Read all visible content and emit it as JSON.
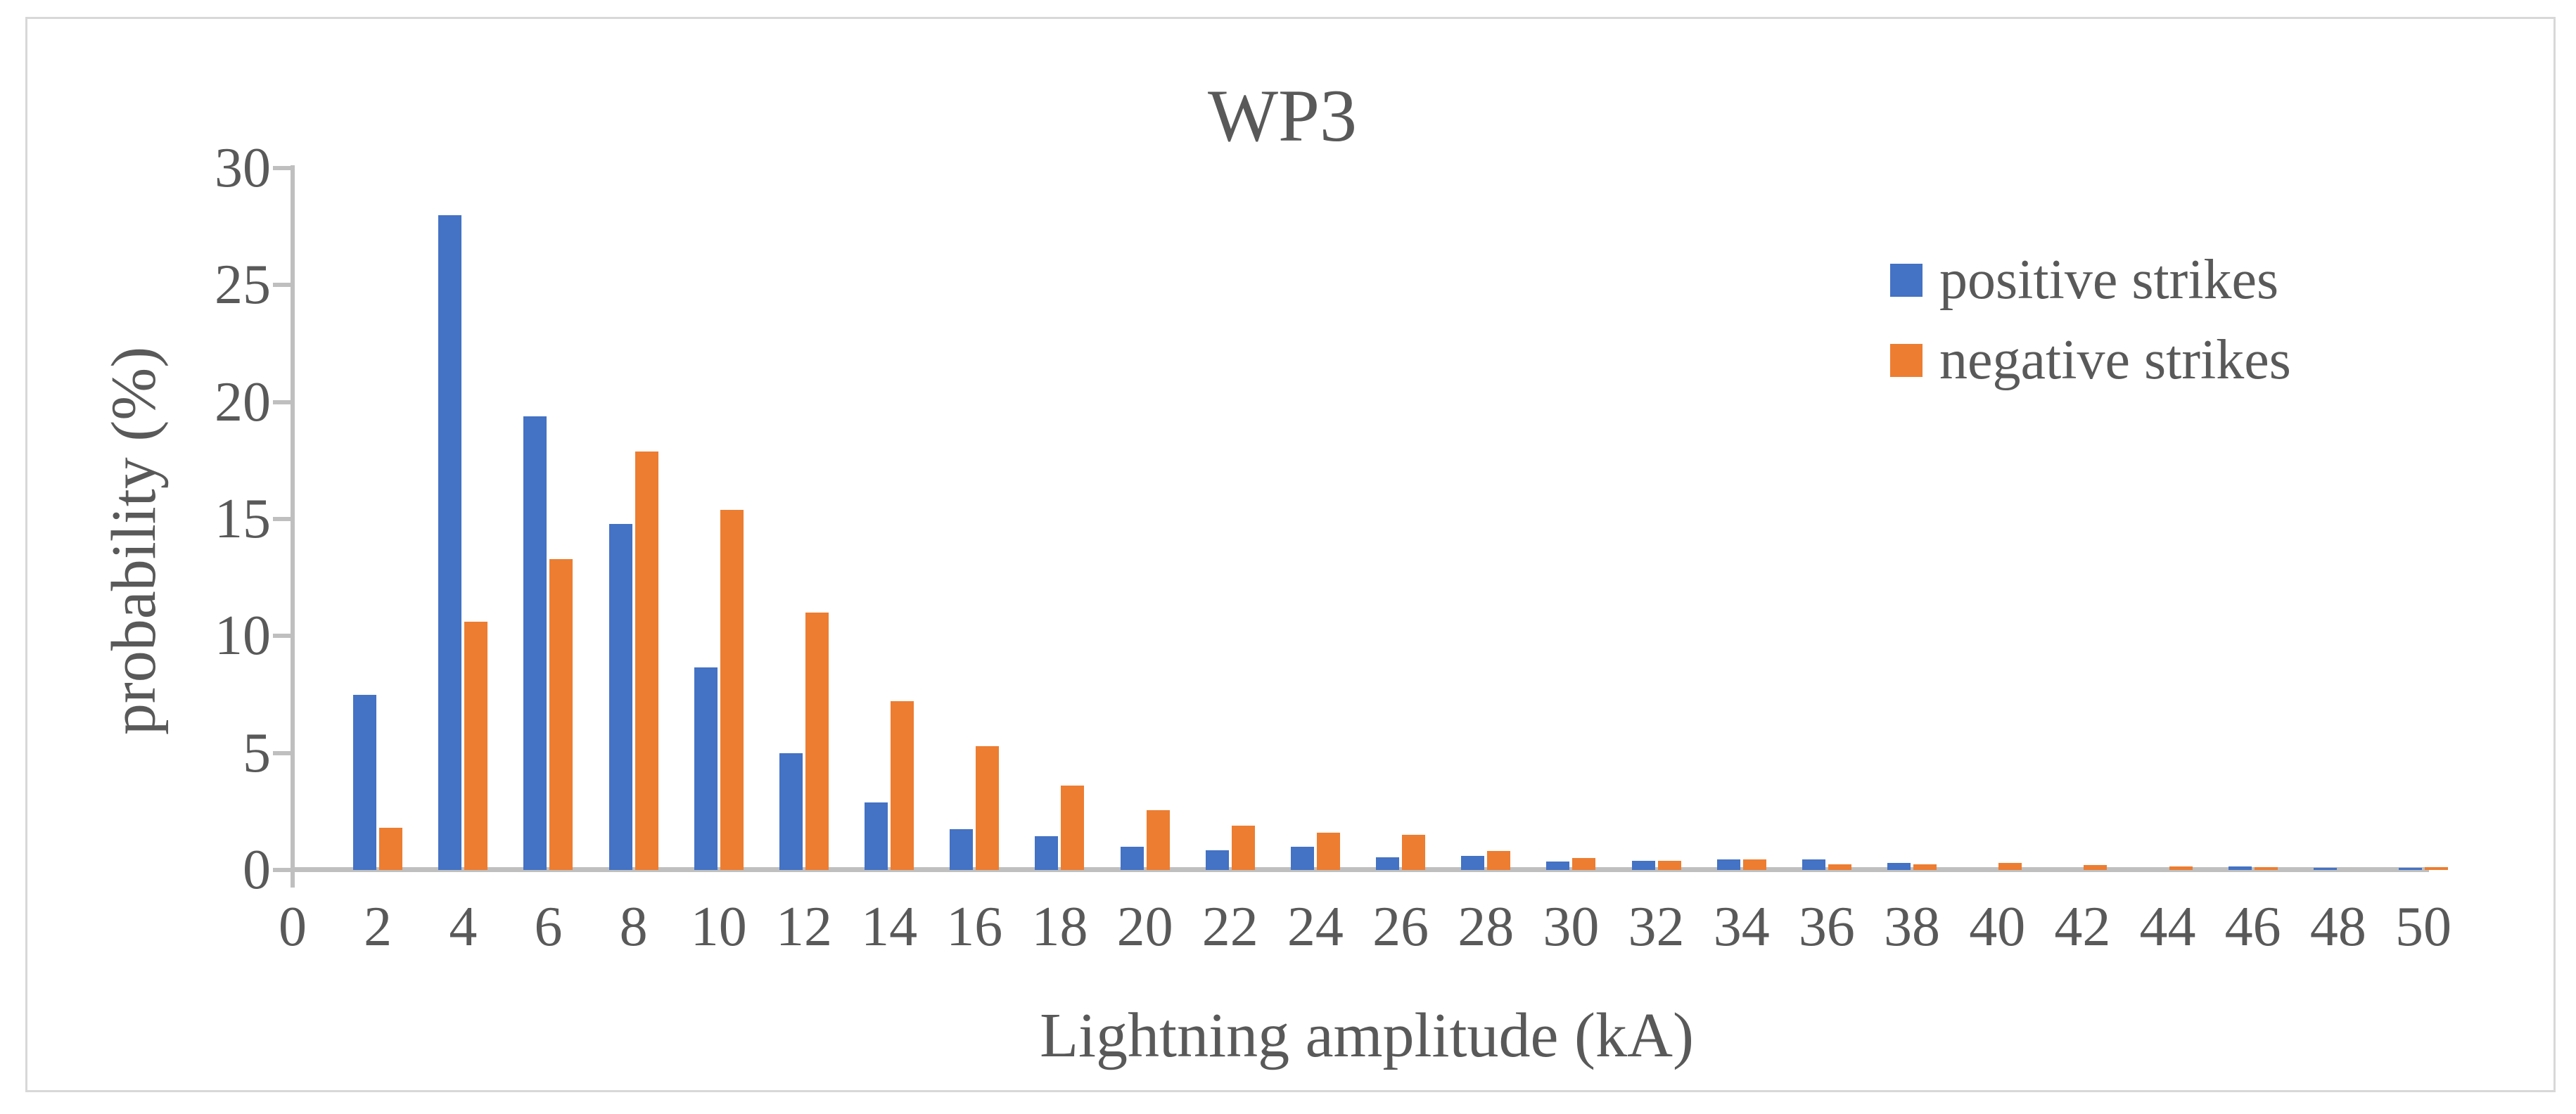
{
  "figure": {
    "background": "#FFFFFF",
    "border_color": "#D8D8D8"
  },
  "chart_data": {
    "type": "bar",
    "title": "WP3",
    "xlabel": "Lightning amplitude (kA)",
    "ylabel": "probability (%)",
    "categories": [
      0,
      2,
      4,
      6,
      8,
      10,
      12,
      14,
      16,
      18,
      20,
      22,
      24,
      26,
      28,
      30,
      32,
      34,
      36,
      38,
      40,
      42,
      44,
      46,
      48,
      50
    ],
    "series": [
      {
        "name": "positive strikes",
        "color": "#4472C4",
        "values": [
          0,
          7.5,
          28.0,
          19.4,
          14.8,
          8.65,
          5.0,
          2.9,
          1.75,
          1.45,
          1.0,
          0.85,
          1.0,
          0.55,
          0.6,
          0.35,
          0.4,
          0.45,
          0.45,
          0.3,
          0,
          0,
          0,
          0.15,
          0.1,
          0.1
        ]
      },
      {
        "name": "negative strikes",
        "color": "#ED7D31",
        "values": [
          0,
          1.8,
          10.6,
          13.3,
          17.9,
          15.4,
          11.0,
          7.2,
          5.3,
          3.6,
          2.55,
          1.9,
          1.6,
          1.5,
          0.8,
          0.5,
          0.4,
          0.45,
          0.25,
          0.25,
          0.3,
          0.2,
          0.15,
          0.12,
          0,
          0.12
        ]
      }
    ],
    "ylim": [
      0,
      30
    ],
    "yticks": [
      0,
      5,
      10,
      15,
      20,
      25,
      30
    ],
    "grid": false,
    "legend_position": "inside-top-right",
    "axis_color": "#BFBFBF",
    "text_color": "#595959"
  }
}
